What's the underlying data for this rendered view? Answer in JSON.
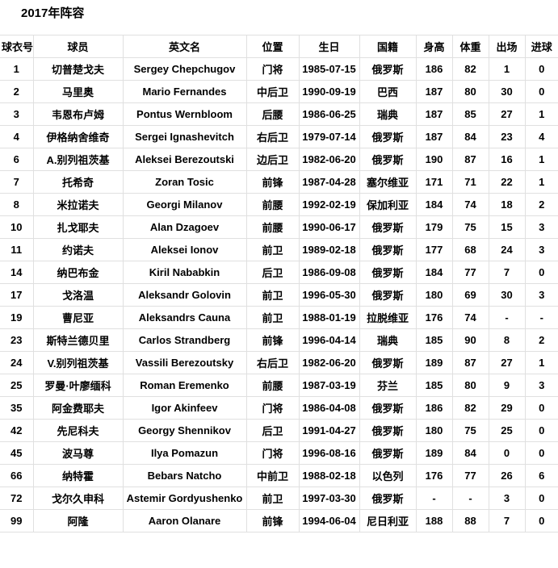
{
  "page": {
    "title": "2017年阵容"
  },
  "table": {
    "columns": [
      {
        "label": "球衣号"
      },
      {
        "label": "球员"
      },
      {
        "label": "英文名"
      },
      {
        "label": "位置"
      },
      {
        "label": "生日"
      },
      {
        "label": "国籍"
      },
      {
        "label": "身高"
      },
      {
        "label": "体重"
      },
      {
        "label": "出场"
      },
      {
        "label": "进球"
      }
    ],
    "rows": [
      [
        "1",
        "切普楚戈夫",
        "Sergey Chepchugov",
        "门将",
        "1985-07-15",
        "俄罗斯",
        "186",
        "82",
        "1",
        "0"
      ],
      [
        "2",
        "马里奥",
        "Mario Fernandes",
        "中后卫",
        "1990-09-19",
        "巴西",
        "187",
        "80",
        "30",
        "0"
      ],
      [
        "3",
        "韦恩布卢姆",
        "Pontus Wernbloom",
        "后腰",
        "1986-06-25",
        "瑞典",
        "187",
        "85",
        "27",
        "1"
      ],
      [
        "4",
        "伊格纳舍维奇",
        "Sergei Ignashevitch",
        "右后卫",
        "1979-07-14",
        "俄罗斯",
        "187",
        "84",
        "23",
        "4"
      ],
      [
        "6",
        "A.别列祖茨基",
        "Aleksei Berezoutski",
        "边后卫",
        "1982-06-20",
        "俄罗斯",
        "190",
        "87",
        "16",
        "1"
      ],
      [
        "7",
        "托希奇",
        "Zoran Tosic",
        "前锋",
        "1987-04-28",
        "塞尔维亚",
        "171",
        "71",
        "22",
        "1"
      ],
      [
        "8",
        "米拉诺夫",
        "Georgi Milanov",
        "前腰",
        "1992-02-19",
        "保加利亚",
        "184",
        "74",
        "18",
        "2"
      ],
      [
        "10",
        "扎戈耶夫",
        "Alan Dzagoev",
        "前腰",
        "1990-06-17",
        "俄罗斯",
        "179",
        "75",
        "15",
        "3"
      ],
      [
        "11",
        "约诺夫",
        "Aleksei Ionov",
        "前卫",
        "1989-02-18",
        "俄罗斯",
        "177",
        "68",
        "24",
        "3"
      ],
      [
        "14",
        "纳巴布金",
        "Kiril Nababkin",
        "后卫",
        "1986-09-08",
        "俄罗斯",
        "184",
        "77",
        "7",
        "0"
      ],
      [
        "17",
        "戈洛温",
        "Aleksandr Golovin",
        "前卫",
        "1996-05-30",
        "俄罗斯",
        "180",
        "69",
        "30",
        "3"
      ],
      [
        "19",
        "曹尼亚",
        "Aleksandrs Cauna",
        "前卫",
        "1988-01-19",
        "拉脱维亚",
        "176",
        "74",
        "-",
        "-"
      ],
      [
        "23",
        "斯特兰德贝里",
        "Carlos Strandberg",
        "前锋",
        "1996-04-14",
        "瑞典",
        "185",
        "90",
        "8",
        "2"
      ],
      [
        "24",
        "V.别列祖茨基",
        "Vassili Berezoutsky",
        "右后卫",
        "1982-06-20",
        "俄罗斯",
        "189",
        "87",
        "27",
        "1"
      ],
      [
        "25",
        "罗曼·叶廖缅科",
        "Roman Eremenko",
        "前腰",
        "1987-03-19",
        "芬兰",
        "185",
        "80",
        "9",
        "3"
      ],
      [
        "35",
        "阿金费耶夫",
        "Igor Akinfeev",
        "门将",
        "1986-04-08",
        "俄罗斯",
        "186",
        "82",
        "29",
        "0"
      ],
      [
        "42",
        "先尼科夫",
        "Georgy Shennikov",
        "后卫",
        "1991-04-27",
        "俄罗斯",
        "180",
        "75",
        "25",
        "0"
      ],
      [
        "45",
        "波马尊",
        "Ilya Pomazun",
        "门将",
        "1996-08-16",
        "俄罗斯",
        "189",
        "84",
        "0",
        "0"
      ],
      [
        "66",
        "纳特霍",
        "Bebars Natcho",
        "中前卫",
        "1988-02-18",
        "以色列",
        "176",
        "77",
        "26",
        "6"
      ],
      [
        "72",
        "戈尔久申科",
        "Astemir Gordyushenko",
        "前卫",
        "1997-03-30",
        "俄罗斯",
        "-",
        "-",
        "3",
        "0"
      ],
      [
        "99",
        "阿隆",
        "Aaron Olanare",
        "前锋",
        "1994-06-04",
        "尼日利亚",
        "188",
        "88",
        "7",
        "0"
      ]
    ]
  }
}
